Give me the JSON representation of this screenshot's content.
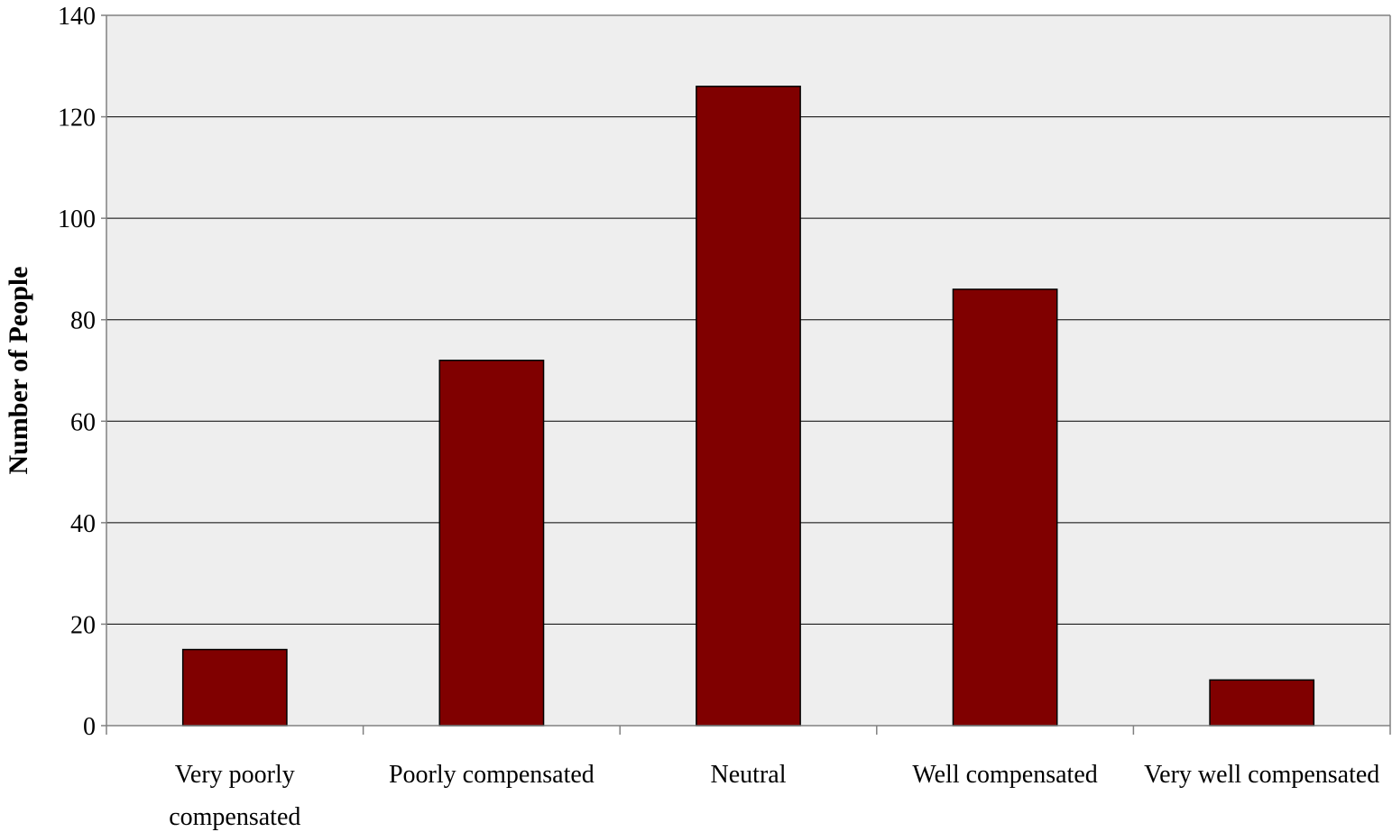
{
  "chart_data": {
    "type": "bar",
    "categories": [
      [
        "Very poorly",
        "compensated"
      ],
      [
        "Poorly compensated"
      ],
      [
        "Neutral"
      ],
      [
        "Well compensated"
      ],
      [
        "Very well compensated"
      ]
    ],
    "values": [
      15,
      72,
      126,
      86,
      9
    ],
    "title": "",
    "xlabel": "",
    "ylabel": "Number of People",
    "ylim": [
      0,
      140
    ],
    "yticks": [
      0,
      20,
      40,
      60,
      80,
      100,
      120,
      140
    ],
    "grid": true,
    "legend": "none"
  },
  "colors": {
    "bar_fill": "#800000",
    "plot_background": "#EEEEEE",
    "gridline": "#000000",
    "axis": "#808080"
  }
}
